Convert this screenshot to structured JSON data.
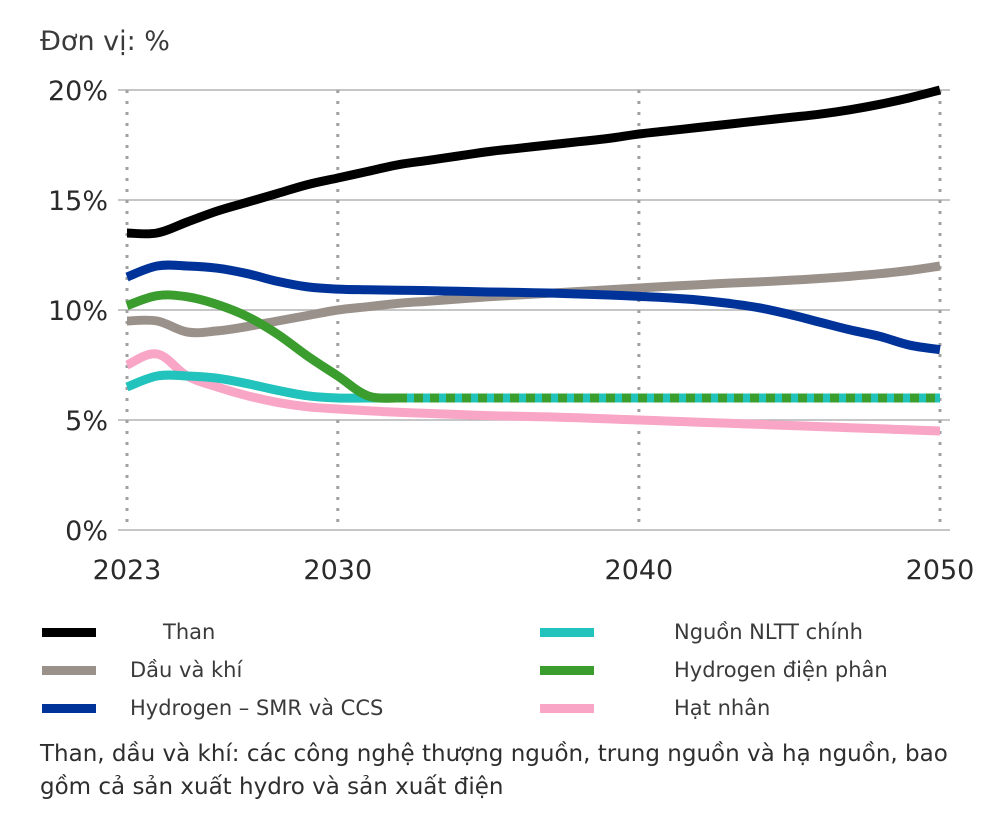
{
  "chart_data": {
    "type": "line",
    "unit_label": "Đơn vị: %",
    "x": [
      2023,
      2024,
      2025,
      2026,
      2027,
      2028,
      2029,
      2030,
      2031,
      2032,
      2033,
      2034,
      2035,
      2036,
      2037,
      2038,
      2039,
      2040,
      2041,
      2042,
      2043,
      2044,
      2045,
      2046,
      2047,
      2048,
      2049,
      2050
    ],
    "xlim": [
      2023,
      2050
    ],
    "ylim": [
      0,
      20
    ],
    "x_ticks": [
      {
        "value": 2023,
        "label": "2023"
      },
      {
        "value": 2030,
        "label": "2030"
      },
      {
        "value": 2040,
        "label": "2040"
      },
      {
        "value": 2050,
        "label": "2050"
      }
    ],
    "y_ticks": [
      {
        "value": 0,
        "label": "0%"
      },
      {
        "value": 5,
        "label": "5%"
      },
      {
        "value": 10,
        "label": "10%"
      },
      {
        "value": 15,
        "label": "15%"
      },
      {
        "value": 20,
        "label": "20%"
      }
    ],
    "grid": "horizontal solid, vertical dotted at ticks",
    "series": [
      {
        "name": "Than",
        "color": "#000000",
        "dashed": false,
        "values": [
          13.5,
          13.5,
          14.0,
          14.5,
          14.9,
          15.3,
          15.7,
          16.0,
          16.3,
          16.6,
          16.8,
          17.0,
          17.2,
          17.35,
          17.5,
          17.65,
          17.8,
          18.0,
          18.15,
          18.3,
          18.45,
          18.6,
          18.75,
          18.9,
          19.1,
          19.35,
          19.65,
          20.0
        ]
      },
      {
        "name": "Dầu và khí",
        "color": "#9a918a",
        "dashed": false,
        "values": [
          9.5,
          9.5,
          9.0,
          9.05,
          9.25,
          9.5,
          9.75,
          10.0,
          10.15,
          10.3,
          10.4,
          10.5,
          10.6,
          10.68,
          10.76,
          10.84,
          10.92,
          11.0,
          11.08,
          11.15,
          11.22,
          11.28,
          11.35,
          11.43,
          11.53,
          11.65,
          11.8,
          12.0
        ]
      },
      {
        "name": "Hydrogen – SMR và CCS",
        "color": "#003399",
        "dashed": false,
        "values": [
          11.5,
          12.0,
          12.0,
          11.9,
          11.65,
          11.3,
          11.05,
          10.95,
          10.92,
          10.9,
          10.88,
          10.85,
          10.82,
          10.8,
          10.77,
          10.73,
          10.68,
          10.62,
          10.55,
          10.45,
          10.3,
          10.1,
          9.8,
          9.45,
          9.1,
          8.8,
          8.4,
          8.2
        ]
      },
      {
        "name": "Nguồn NLTT chính",
        "color": "#22c3bd",
        "dashed": false,
        "values": [
          6.5,
          7.0,
          7.0,
          6.9,
          6.65,
          6.35,
          6.1,
          6.0,
          6.0,
          6.0,
          6.0,
          6.0,
          6.0,
          6.0,
          6.0,
          6.0,
          6.0,
          6.0,
          6.0,
          6.0,
          6.0,
          6.0,
          6.0,
          6.0,
          6.0,
          6.0,
          6.0,
          6.0
        ]
      },
      {
        "name": "Hydrogen điện phân",
        "color": "#3a9d2e",
        "dashed": true,
        "values": [
          10.2,
          10.65,
          10.6,
          10.25,
          9.7,
          8.9,
          7.9,
          7.0,
          6.1,
          6.0,
          6.0,
          6.0,
          6.0,
          6.0,
          6.0,
          6.0,
          6.0,
          6.0,
          6.0,
          6.0,
          6.0,
          6.0,
          6.0,
          6.0,
          6.0,
          6.0,
          6.0,
          6.0
        ]
      },
      {
        "name": "Hạt nhân",
        "color": "#f8a5c6",
        "dashed": false,
        "values": [
          7.5,
          8.0,
          7.0,
          6.5,
          6.1,
          5.8,
          5.6,
          5.5,
          5.42,
          5.35,
          5.3,
          5.25,
          5.2,
          5.17,
          5.14,
          5.1,
          5.05,
          5.0,
          4.95,
          4.9,
          4.85,
          4.8,
          4.75,
          4.7,
          4.65,
          4.6,
          4.55,
          4.5
        ]
      }
    ]
  },
  "footnote": "Than, dầu và khí: các công nghệ thượng nguồn, trung nguồn và hạ nguồn, bao gồm cả sản xuất hydro và sản xuất điện"
}
